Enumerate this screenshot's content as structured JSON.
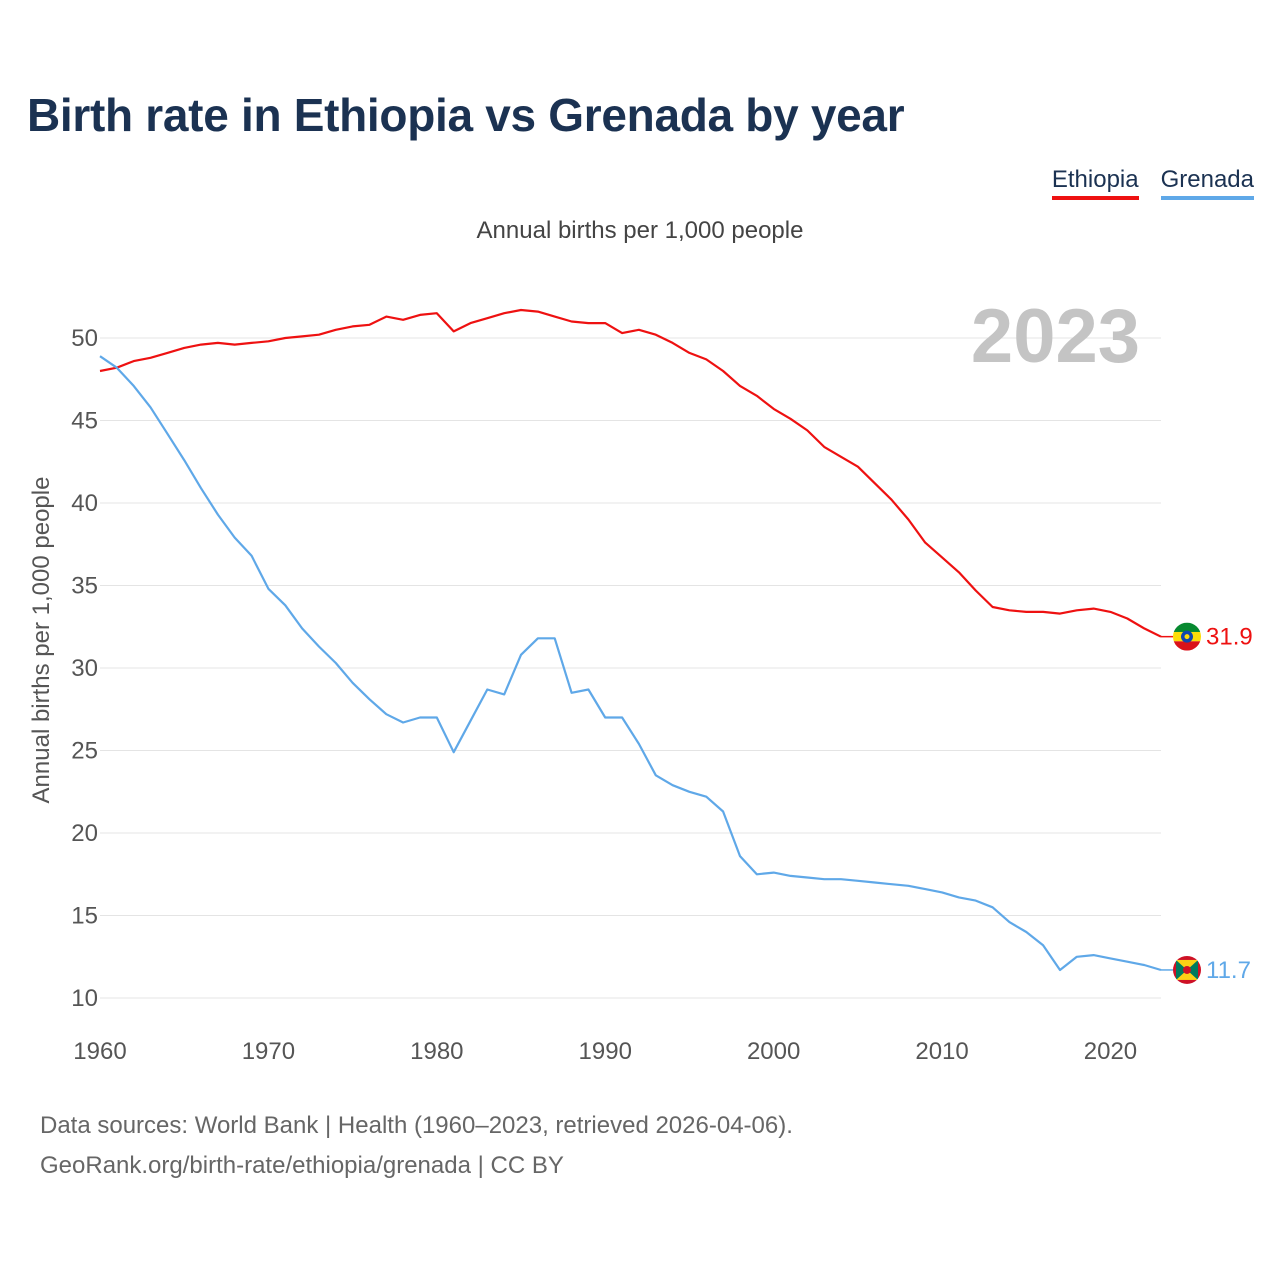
{
  "page": {
    "title": "Birth rate in Ethiopia vs Grenada by year",
    "subtitle": "Annual births per 1,000 people",
    "footer_line1": "Data sources: World Bank | Health (1960–2023, retrieved 2026-04-06).",
    "footer_line2": "GeoRank.org/birth-rate/ethiopia/grenada | CC BY"
  },
  "legend": [
    {
      "label": "Ethiopia",
      "color": "#ee1111"
    },
    {
      "label": "Grenada",
      "color": "#5fa8e8"
    }
  ],
  "chart_data": {
    "type": "line",
    "title": "Birth rate in Ethiopia vs Grenada by year",
    "subtitle": "Annual births per 1,000 people",
    "xlabel": "",
    "ylabel": "Annual births per 1,000 people",
    "year_label": "2023",
    "xlim": [
      1960,
      2023
    ],
    "ylim": [
      10,
      52
    ],
    "x_ticks": [
      1960,
      1970,
      1980,
      1990,
      2000,
      2010,
      2020
    ],
    "y_ticks": [
      10,
      15,
      20,
      25,
      30,
      35,
      40,
      45,
      50
    ],
    "grid": true,
    "legend_position": "top-right",
    "x": [
      1960,
      1961,
      1962,
      1963,
      1964,
      1965,
      1966,
      1967,
      1968,
      1969,
      1970,
      1971,
      1972,
      1973,
      1974,
      1975,
      1976,
      1977,
      1978,
      1979,
      1980,
      1981,
      1982,
      1983,
      1984,
      1985,
      1986,
      1987,
      1988,
      1989,
      1990,
      1991,
      1992,
      1993,
      1994,
      1995,
      1996,
      1997,
      1998,
      1999,
      2000,
      2001,
      2002,
      2003,
      2004,
      2005,
      2006,
      2007,
      2008,
      2009,
      2010,
      2011,
      2012,
      2013,
      2014,
      2015,
      2016,
      2017,
      2018,
      2019,
      2020,
      2021,
      2022,
      2023
    ],
    "series": [
      {
        "name": "Ethiopia",
        "color": "#ee1111",
        "end_label": "31.9",
        "flag_icon": "ethiopia-flag-icon",
        "values": [
          48.0,
          48.2,
          48.6,
          48.8,
          49.1,
          49.4,
          49.6,
          49.7,
          49.6,
          49.7,
          49.8,
          50.0,
          50.1,
          50.2,
          50.5,
          50.7,
          50.8,
          51.3,
          51.1,
          51.4,
          51.5,
          50.4,
          50.9,
          51.2,
          51.5,
          51.7,
          51.6,
          51.3,
          51.0,
          50.9,
          50.9,
          50.3,
          50.5,
          50.2,
          49.7,
          49.1,
          48.7,
          48.0,
          47.1,
          46.5,
          45.7,
          45.1,
          44.4,
          43.4,
          42.8,
          42.2,
          41.2,
          40.2,
          39.0,
          37.6,
          36.7,
          35.8,
          34.7,
          33.7,
          33.5,
          33.4,
          33.4,
          33.3,
          33.5,
          33.6,
          33.4,
          33.0,
          32.4,
          31.9
        ]
      },
      {
        "name": "Grenada",
        "color": "#5fa8e8",
        "end_label": "11.7",
        "flag_icon": "grenada-flag-icon",
        "values": [
          48.9,
          48.2,
          47.1,
          45.8,
          44.2,
          42.6,
          40.9,
          39.3,
          37.9,
          36.8,
          34.8,
          33.8,
          32.4,
          31.3,
          30.3,
          29.1,
          28.1,
          27.2,
          26.7,
          27.0,
          27.0,
          24.9,
          26.8,
          28.7,
          28.4,
          30.8,
          31.8,
          31.8,
          28.5,
          28.7,
          27.0,
          27.0,
          25.4,
          23.5,
          22.9,
          22.5,
          22.2,
          21.3,
          18.6,
          17.5,
          17.6,
          17.4,
          17.3,
          17.2,
          17.2,
          17.1,
          17.0,
          16.9,
          16.8,
          16.6,
          16.4,
          16.1,
          15.9,
          15.5,
          14.6,
          14.0,
          13.2,
          11.7,
          12.5,
          12.6,
          12.4,
          12.2,
          12.0,
          11.7
        ]
      }
    ]
  }
}
